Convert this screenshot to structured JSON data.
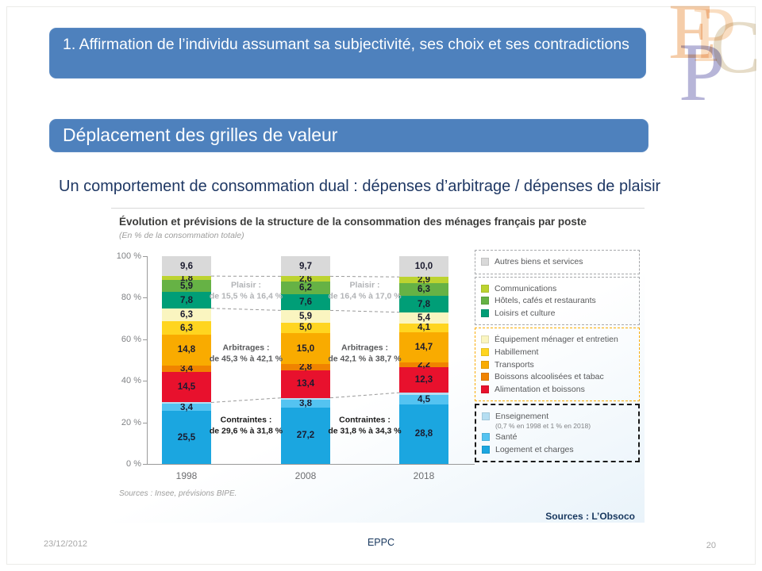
{
  "slide": {
    "header1": "1. Affirmation de l’individu assumant sa subjectivité, ses choix et ses contradictions",
    "header2": "Déplacement des grilles de valeur",
    "subtitle": "Un comportement de consommation dual : dépenses d’arbitrage / dépenses de plaisir",
    "source_right": "Sources : L’Obsoco",
    "footer": {
      "date": "23/12/2012",
      "center": "EPPC",
      "page": "20"
    },
    "logo_letters": {
      "e": "E",
      "p1": "P",
      "c": "C",
      "p2": "P"
    }
  },
  "chart_data": {
    "type": "bar",
    "stacked": true,
    "title": "Évolution et prévisions de la structure de la consommation des ménages français par poste",
    "subtitle": "(En % de la consommation totale)",
    "source": "Sources : Insee, prévisions BIPE.",
    "categories": [
      "1998",
      "2008",
      "2018"
    ],
    "y_ticks": [
      "100 %",
      "80 %",
      "60 %",
      "40 %",
      "20 %",
      "0 %"
    ],
    "ylim": [
      0,
      100
    ],
    "grid": false,
    "legend_position": "right",
    "series_bottom_to_top": [
      {
        "name": "Logement et charges",
        "color": "#1BA6E0",
        "values": [
          25.5,
          27.2,
          28.8
        ],
        "show_label": true
      },
      {
        "name": "Santé",
        "color": "#54C3F1",
        "values": [
          3.4,
          3.8,
          4.5
        ],
        "show_label": true
      },
      {
        "name": "Enseignement",
        "color": "#B5DEF2",
        "values": [
          0.7,
          0.8,
          1.0
        ],
        "show_label": false
      },
      {
        "name": "Alimentation et boissons",
        "color": "#E8112D",
        "values": [
          14.5,
          13.4,
          12.3
        ],
        "show_label": true
      },
      {
        "name": "Boissons alcoolisées et tabac",
        "color": "#F08300",
        "values": [
          3.4,
          2.8,
          2.2
        ],
        "show_label": true
      },
      {
        "name": "Transports",
        "color": "#F9AB00",
        "values": [
          14.8,
          15.0,
          14.7
        ],
        "show_label": true
      },
      {
        "name": "Habillement",
        "color": "#FFD520",
        "values": [
          6.3,
          5.0,
          4.1
        ],
        "show_label": true
      },
      {
        "name": "Équipement ménager et entretien",
        "color": "#FAF5C0",
        "values": [
          6.3,
          5.9,
          5.4
        ],
        "show_label": true
      },
      {
        "name": "Loisirs et culture",
        "color": "#009E77",
        "values": [
          7.8,
          7.6,
          7.8
        ],
        "show_label": true
      },
      {
        "name": "Hôtels, cafés et restaurants",
        "color": "#66B245",
        "values": [
          5.9,
          6.2,
          6.3
        ],
        "show_label": true
      },
      {
        "name": "Communications",
        "color": "#BCD330",
        "values": [
          1.8,
          2.6,
          2.9
        ],
        "show_label": true
      },
      {
        "name": "Autres biens et services",
        "color": "#D9D9D9",
        "values": [
          9.6,
          9.7,
          10.0
        ],
        "show_label": true
      }
    ],
    "group_boundaries_series_count": [
      3,
      8,
      11
    ],
    "annotations": [
      {
        "between": [
          0,
          1
        ],
        "items": [
          {
            "title": "Plaisir :",
            "text": "de 15,5 % à 16,4 %",
            "style": "light",
            "y_pct": 16.8
          },
          {
            "title": "Arbitrages :",
            "text": "de 45,3 % à 42,1 %",
            "style": "medium",
            "y_pct": 47.0
          },
          {
            "title": "Contraintes :",
            "text": "de 29,6 % à 31,8 %",
            "style": "dark",
            "y_pct": 81.7
          }
        ]
      },
      {
        "between": [
          1,
          2
        ],
        "items": [
          {
            "title": "Plaisir :",
            "text": "de 16,4 % à 17,0 %",
            "style": "light",
            "y_pct": 16.8
          },
          {
            "title": "Arbitrages :",
            "text": "de 42,1 % à 38,7 %",
            "style": "medium",
            "y_pct": 47.0
          },
          {
            "title": "Contraintes :",
            "text": "de 31,8 % à 34,3 %",
            "style": "dark",
            "y_pct": 81.7
          }
        ]
      }
    ],
    "legend_groups": [
      {
        "border_color": "#a7a9ac",
        "border_width": 1,
        "items": [
          {
            "color": "#D9D9D9",
            "label": "Autres biens et services"
          }
        ]
      },
      {
        "border_color": "#a7a9ac",
        "border_width": 1,
        "items": [
          {
            "color": "#BCD330",
            "label": "Communications"
          },
          {
            "color": "#66B245",
            "label": "Hôtels, cafés et restaurants"
          },
          {
            "color": "#009E77",
            "label": "Loisirs et culture"
          }
        ]
      },
      {
        "border_color": "#F9AB00",
        "border_width": 1,
        "items": [
          {
            "color": "#FAF5C0",
            "label": "Équipement ménager et entretien"
          },
          {
            "color": "#FFD520",
            "label": "Habillement"
          },
          {
            "color": "#F9AB00",
            "label": "Transports"
          },
          {
            "color": "#F08300",
            "label": "Boissons alcoolisées et tabac"
          },
          {
            "color": "#E8112D",
            "label": "Alimentation et boissons"
          }
        ]
      },
      {
        "border_color": "#1a1a1a",
        "border_width": 2,
        "items": [
          {
            "color": "#B5DEF2",
            "label": "Enseignement",
            "note": "(0,7 % en 1998 et 1 % en 2018)"
          },
          {
            "color": "#54C3F1",
            "label": "Santé"
          },
          {
            "color": "#1BA6E0",
            "label": "Logement et charges"
          }
        ]
      }
    ]
  }
}
